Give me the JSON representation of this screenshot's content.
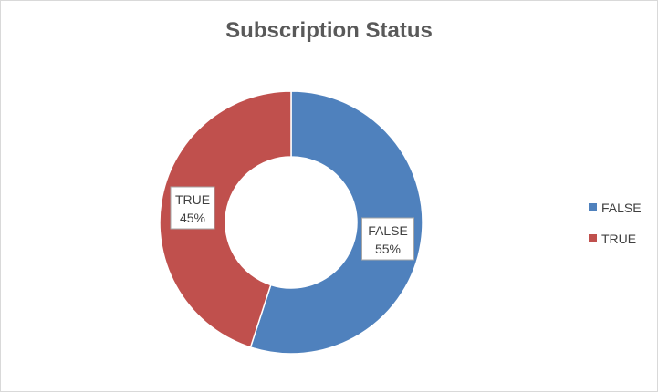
{
  "chart_data": {
    "type": "pie",
    "variant": "doughnut",
    "title": "Subscription Status",
    "slices": [
      {
        "label": "FALSE",
        "value": 55,
        "percent_label": "55%",
        "color": "#4F81BD"
      },
      {
        "label": "TRUE",
        "value": 45,
        "percent_label": "45%",
        "color": "#C0504D"
      }
    ],
    "legend": {
      "position": "right",
      "entries": [
        "FALSE",
        "TRUE"
      ]
    }
  }
}
